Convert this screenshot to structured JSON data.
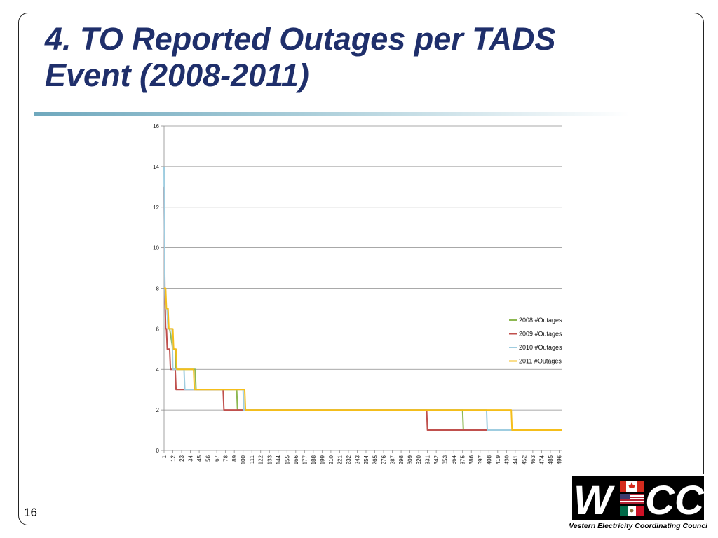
{
  "slide": {
    "title_line1": "4. TO Reported Outages per TADS",
    "title_line2": "Event (2008-2011)",
    "page_number": "16"
  },
  "logo": {
    "letters_left": "W",
    "letters_right": "CC",
    "caption": "Western Electricity Coordinating Council"
  },
  "colors": {
    "title": "#1f2f6b",
    "series_2008": "#8db851",
    "series_2009": "#c0504d",
    "series_2010": "#9fcde0",
    "series_2011": "#f5be1a"
  },
  "chart_data": {
    "type": "line",
    "title": "",
    "xlabel": "",
    "ylabel": "",
    "ylim": [
      0,
      16
    ],
    "yticks": [
      0,
      2,
      4,
      6,
      8,
      10,
      12,
      14,
      16
    ],
    "xlim": [
      1,
      500
    ],
    "xticks": [
      1,
      12,
      23,
      34,
      45,
      56,
      67,
      78,
      89,
      100,
      111,
      122,
      133,
      144,
      155,
      166,
      177,
      188,
      199,
      210,
      221,
      232,
      243,
      254,
      265,
      276,
      287,
      298,
      309,
      320,
      331,
      342,
      353,
      364,
      375,
      386,
      397,
      408,
      419,
      430,
      441,
      452,
      463,
      474,
      485,
      496
    ],
    "grid": true,
    "legend_position": "right",
    "series": [
      {
        "name": "2008 #Outages",
        "color": "#8db851",
        "x": [
          1,
          2,
          3,
          5,
          6,
          8,
          12,
          15,
          16,
          40,
          41,
          92,
          93,
          375,
          376,
          500
        ],
        "y": [
          8,
          8,
          7,
          7,
          6,
          6,
          5,
          5,
          4,
          4,
          3,
          3,
          2,
          2,
          1,
          1
        ]
      },
      {
        "name": "2009 #Outages",
        "color": "#c0504d",
        "x": [
          1,
          2,
          3,
          4,
          5,
          8,
          9,
          15,
          16,
          75,
          76,
          330,
          331,
          500
        ],
        "y": [
          13,
          8,
          6,
          6,
          5,
          5,
          4,
          4,
          3,
          3,
          2,
          2,
          1,
          1
        ]
      },
      {
        "name": "2010 #Outages",
        "color": "#9fcde0",
        "x": [
          1,
          2,
          3,
          5,
          6,
          11,
          12,
          26,
          27,
          100,
          101,
          405,
          406,
          500
        ],
        "y": [
          14,
          8,
          7,
          7,
          6,
          6,
          4,
          4,
          3,
          3,
          2,
          2,
          1,
          1
        ]
      },
      {
        "name": "2011 #Outages",
        "color": "#f5be1a",
        "x": [
          1,
          3,
          4,
          6,
          7,
          12,
          13,
          16,
          17,
          38,
          39,
          102,
          103,
          436,
          437,
          500
        ],
        "y": [
          8,
          8,
          7,
          7,
          6,
          6,
          5,
          5,
          4,
          4,
          3,
          3,
          2,
          2,
          1,
          1
        ]
      }
    ]
  }
}
